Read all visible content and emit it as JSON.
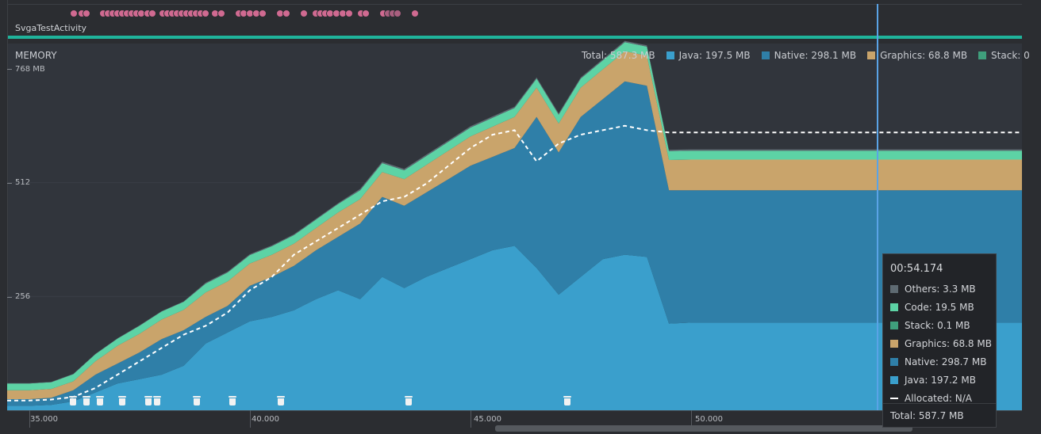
{
  "activity": {
    "name": "SvgaTestActivity"
  },
  "memory": {
    "title": "MEMORY",
    "legend": [
      {
        "label": "Total: 587.3 MB",
        "color": null
      },
      {
        "label": "Java: 197.5 MB",
        "color": "#3a9fcc"
      },
      {
        "label": "Native: 298.1 MB",
        "color": "#2f7fa8"
      },
      {
        "label": "Graphics: 68.8 MB",
        "color": "#c9a46b"
      },
      {
        "label": "Stack: 0",
        "color": "#3f9f7c"
      }
    ],
    "y_ticks": [
      "768 MB",
      "512",
      "256"
    ],
    "x_ticks": [
      "35.000",
      "40.000",
      "45.000",
      "50.000"
    ]
  },
  "tooltip": {
    "time": "00:54.174",
    "rows": [
      {
        "label": "Others: 3.3 MB",
        "color": "#5e6a72"
      },
      {
        "label": "Code: 19.5 MB",
        "color": "#5dd3a5"
      },
      {
        "label": "Stack: 0.1 MB",
        "color": "#3f9f7c"
      },
      {
        "label": "Graphics: 68.8 MB",
        "color": "#c9a46b"
      },
      {
        "label": "Native: 298.7 MB",
        "color": "#2f7fa8"
      },
      {
        "label": "Java: 197.2 MB",
        "color": "#3a9fcc"
      },
      {
        "label": "Allocated: N/A",
        "color": "#ffffff"
      }
    ],
    "total": "Total: 587.7 MB"
  },
  "chart_data": {
    "type": "area",
    "title": "MEMORY",
    "ylim": [
      0,
      768
    ],
    "y_unit": "MB",
    "x_unit": "seconds",
    "xlim": [
      34.5,
      57.5
    ],
    "x": [
      34.5,
      35.0,
      35.5,
      36.0,
      36.5,
      37.0,
      37.5,
      38.0,
      38.5,
      39.0,
      39.5,
      40.0,
      40.5,
      41.0,
      41.5,
      42.0,
      42.5,
      43.0,
      43.5,
      44.0,
      44.5,
      45.0,
      45.5,
      46.0,
      46.5,
      47.0,
      47.5,
      48.0,
      48.5,
      49.0,
      49.5,
      50.0,
      52.0,
      54.0,
      56.0,
      57.5
    ],
    "series": [
      {
        "name": "Java",
        "color": "#3a9fcc",
        "values": [
          10,
          10,
          12,
          20,
          40,
          60,
          70,
          80,
          100,
          150,
          175,
          200,
          210,
          225,
          250,
          270,
          250,
          300,
          275,
          300,
          320,
          340,
          360,
          370,
          320,
          260,
          300,
          340,
          350,
          345,
          195,
          197,
          197,
          197,
          197,
          197
        ]
      },
      {
        "name": "Native",
        "color": "#2f7fa8",
        "values": [
          15,
          15,
          16,
          25,
          40,
          45,
          60,
          80,
          80,
          60,
          60,
          80,
          90,
          100,
          110,
          120,
          170,
          180,
          185,
          190,
          200,
          210,
          210,
          220,
          340,
          320,
          360,
          360,
          390,
          385,
          300,
          298,
          298,
          298,
          298,
          298
        ]
      },
      {
        "name": "Graphics",
        "color": "#c9a46b",
        "values": [
          20,
          20,
          20,
          20,
          30,
          40,
          42,
          44,
          46,
          55,
          55,
          50,
          50,
          50,
          50,
          55,
          55,
          56,
          60,
          62,
          64,
          66,
          68,
          70,
          66,
          65,
          66,
          67,
          68,
          68,
          68,
          69,
          69,
          69,
          69,
          69
        ]
      },
      {
        "name": "Code",
        "color": "#5dd3a5",
        "values": [
          15,
          15,
          15,
          16,
          16,
          16,
          18,
          18,
          18,
          20,
          20,
          19,
          19,
          19,
          19,
          19,
          20,
          20,
          20,
          20,
          20,
          20,
          20,
          20,
          20,
          20,
          20,
          20,
          20,
          20,
          20,
          20,
          20,
          20,
          20,
          20
        ]
      },
      {
        "name": "Others",
        "color": "#5e6a72",
        "values": [
          1,
          1,
          1,
          1,
          1,
          1,
          1,
          1,
          1,
          2,
          2,
          2,
          2,
          2,
          2,
          2,
          3,
          3,
          3,
          3,
          3,
          3,
          3,
          3,
          3,
          3,
          3,
          3,
          3,
          3,
          3,
          3,
          3,
          3,
          3,
          3
        ]
      },
      {
        "name": "Allocated",
        "color": "#ffffff",
        "style": "dashed",
        "values": [
          22,
          22,
          24,
          30,
          50,
          80,
          110,
          140,
          170,
          190,
          220,
          270,
          300,
          350,
          380,
          410,
          440,
          470,
          480,
          510,
          550,
          590,
          620,
          630,
          560,
          600,
          620,
          630,
          640,
          630,
          625,
          625,
          625,
          625,
          625,
          625
        ]
      }
    ],
    "gc_events_x": [
      36.0,
      36.3,
      36.6,
      37.1,
      37.7,
      37.9,
      38.8,
      39.6,
      40.7,
      43.6,
      47.2
    ],
    "cursor_x": 54.174
  },
  "events": {
    "dot_count": 40
  }
}
